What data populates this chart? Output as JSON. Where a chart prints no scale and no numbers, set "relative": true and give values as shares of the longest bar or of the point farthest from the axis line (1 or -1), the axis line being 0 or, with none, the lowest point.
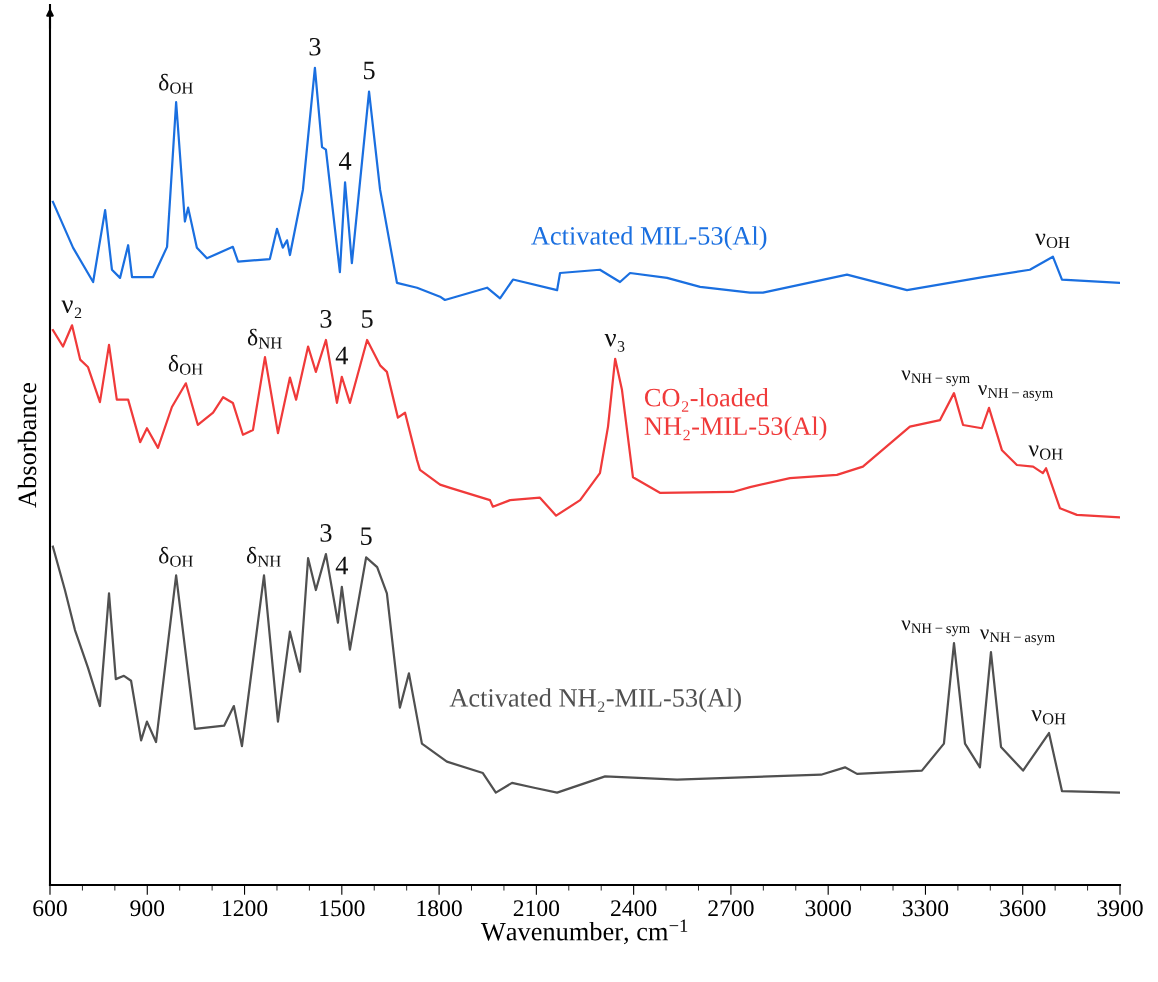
{
  "chart_data": {
    "type": "line",
    "relative": true,
    "xlabel": "Wavenumber, cm$^{−1}$",
    "ylabel": "Absorbance",
    "xlim": [
      600,
      3900
    ],
    "xticks": [
      600,
      900,
      1200,
      1500,
      1800,
      2100,
      2400,
      2700,
      3000,
      3300,
      3600,
      3900
    ],
    "grid": false,
    "legend": false,
    "marker": "none",
    "line_style": "solid",
    "series": [
      {
        "name": "Activated MIL-53(Al)",
        "color": "#1a6fe0",
        "x": [
          609,
          671,
          733,
          770,
          791,
          816,
          841,
          853,
          918,
          961,
          989,
          1016,
          1026,
          1053,
          1084,
          1164,
          1180,
          1278,
          1300,
          1318,
          1331,
          1340,
          1380,
          1417,
          1439,
          1451,
          1494,
          1510,
          1531,
          1584,
          1618,
          1670,
          1732,
          1803,
          1818,
          1948,
          1988,
          2028,
          2164,
          2173,
          2296,
          2358,
          2389,
          2503,
          2605,
          2759,
          2799,
          3058,
          3243,
          3477,
          3622,
          3693,
          3721,
          3900
        ],
        "values": [
          0.836,
          0.78,
          0.738,
          0.826,
          0.753,
          0.743,
          0.783,
          0.744,
          0.744,
          0.781,
          0.958,
          0.812,
          0.829,
          0.78,
          0.767,
          0.781,
          0.763,
          0.766,
          0.803,
          0.78,
          0.789,
          0.771,
          0.851,
          1.0,
          0.903,
          0.9,
          0.75,
          0.86,
          0.761,
          0.971,
          0.851,
          0.737,
          0.731,
          0.72,
          0.716,
          0.731,
          0.718,
          0.741,
          0.728,
          0.749,
          0.753,
          0.738,
          0.749,
          0.743,
          0.732,
          0.725,
          0.725,
          0.747,
          0.728,
          0.744,
          0.753,
          0.769,
          0.741,
          0.737
        ]
      },
      {
        "name": "CO₂-loaded\nNH₂-MIL-53(Al)",
        "color": "#f03a3a",
        "x": [
          609,
          640,
          668,
          693,
          717,
          754,
          782,
          806,
          841,
          878,
          899,
          933,
          976,
          1019,
          1056,
          1103,
          1134,
          1164,
          1195,
          1226,
          1263,
          1303,
          1340,
          1359,
          1396,
          1420,
          1451,
          1485,
          1500,
          1525,
          1578,
          1618,
          1639,
          1673,
          1695,
          1732,
          1741,
          1803,
          1834,
          1957,
          1966,
          2019,
          2111,
          2161,
          2235,
          2296,
          2321,
          2343,
          2364,
          2398,
          2481,
          2706,
          2759,
          2882,
          3027,
          3107,
          3252,
          3345,
          3388,
          3416,
          3474,
          3496,
          3536,
          3582,
          3632,
          3662,
          3672,
          3715,
          3767,
          3900
        ],
        "values": [
          0.679,
          0.659,
          0.685,
          0.643,
          0.634,
          0.591,
          0.661,
          0.594,
          0.594,
          0.542,
          0.559,
          0.535,
          0.585,
          0.614,
          0.563,
          0.578,
          0.597,
          0.59,
          0.551,
          0.557,
          0.646,
          0.553,
          0.621,
          0.594,
          0.659,
          0.628,
          0.667,
          0.59,
          0.622,
          0.59,
          0.667,
          0.636,
          0.628,
          0.572,
          0.578,
          0.52,
          0.508,
          0.49,
          0.486,
          0.471,
          0.463,
          0.471,
          0.474,
          0.452,
          0.471,
          0.504,
          0.561,
          0.644,
          0.606,
          0.499,
          0.48,
          0.481,
          0.487,
          0.498,
          0.502,
          0.512,
          0.561,
          0.569,
          0.602,
          0.563,
          0.559,
          0.584,
          0.532,
          0.514,
          0.512,
          0.504,
          0.51,
          0.461,
          0.453,
          0.45
        ]
      },
      {
        "name": "Activated NH₂-MIL-53(Al)",
        "color": "#505050",
        "x": [
          609,
          646,
          677,
          717,
          754,
          782,
          803,
          828,
          850,
          881,
          899,
          927,
          989,
          1047,
          1137,
          1167,
          1192,
          1260,
          1303,
          1340,
          1371,
          1396,
          1420,
          1451,
          1488,
          1500,
          1525,
          1575,
          1609,
          1639,
          1679,
          1707,
          1747,
          1824,
          1935,
          1975,
          2025,
          2093,
          2164,
          2312,
          2534,
          2756,
          2978,
          3052,
          3089,
          3289,
          3357,
          3388,
          3422,
          3468,
          3502,
          3533,
          3601,
          3681,
          3721,
          3900
        ],
        "values": [
          0.414,
          0.361,
          0.312,
          0.266,
          0.219,
          0.357,
          0.252,
          0.256,
          0.25,
          0.177,
          0.2,
          0.175,
          0.379,
          0.191,
          0.195,
          0.219,
          0.17,
          0.379,
          0.2,
          0.31,
          0.261,
          0.4,
          0.361,
          0.405,
          0.321,
          0.365,
          0.288,
          0.401,
          0.389,
          0.357,
          0.217,
          0.259,
          0.173,
          0.151,
          0.137,
          0.113,
          0.125,
          0.119,
          0.113,
          0.133,
          0.129,
          0.132,
          0.135,
          0.144,
          0.136,
          0.14,
          0.173,
          0.296,
          0.173,
          0.144,
          0.285,
          0.169,
          0.14,
          0.186,
          0.115,
          0.113
        ]
      }
    ],
    "annotations": [
      {
        "text": "δ$_{OH}$",
        "x": 989,
        "y": 0.958
      },
      {
        "text": "3",
        "x": 1417,
        "y": 1.0
      },
      {
        "text": "4",
        "x": 1510,
        "y": 0.86
      },
      {
        "text": "5",
        "x": 1584,
        "y": 0.971
      },
      {
        "text": "ν$_{OH}$",
        "x": 3693,
        "y": 0.769
      },
      {
        "text": "ν₂",
        "x": 668,
        "y": 0.685
      },
      {
        "text": "δ$_{OH}$",
        "x": 1019,
        "y": 0.614
      },
      {
        "text": "δ$_{NH}$",
        "x": 1263,
        "y": 0.646
      },
      {
        "text": "3",
        "x": 1451,
        "y": 0.667
      },
      {
        "text": "4",
        "x": 1500,
        "y": 0.622
      },
      {
        "text": "5",
        "x": 1578,
        "y": 0.667
      },
      {
        "text": "ν₃",
        "x": 2343,
        "y": 0.644
      },
      {
        "text": "ν$_{NH−sym}$",
        "x": 3388,
        "y": 0.602
      },
      {
        "text": "ν$_{NH−asym}$",
        "x": 3496,
        "y": 0.584
      },
      {
        "text": "ν$_{OH}$",
        "x": 3672,
        "y": 0.51
      },
      {
        "text": "δ$_{OH}$",
        "x": 989,
        "y": 0.379
      },
      {
        "text": "δ$_{NH}$",
        "x": 1260,
        "y": 0.379
      },
      {
        "text": "3",
        "x": 1451,
        "y": 0.405
      },
      {
        "text": "4",
        "x": 1500,
        "y": 0.365
      },
      {
        "text": "5",
        "x": 1575,
        "y": 0.401
      },
      {
        "text": "ν$_{NH−sym}$",
        "x": 3388,
        "y": 0.296
      },
      {
        "text": "ν$_{NH−asym}$",
        "x": 3502,
        "y": 0.285
      },
      {
        "text": "ν$_{OH}$",
        "x": 3681,
        "y": 0.186
      }
    ]
  }
}
